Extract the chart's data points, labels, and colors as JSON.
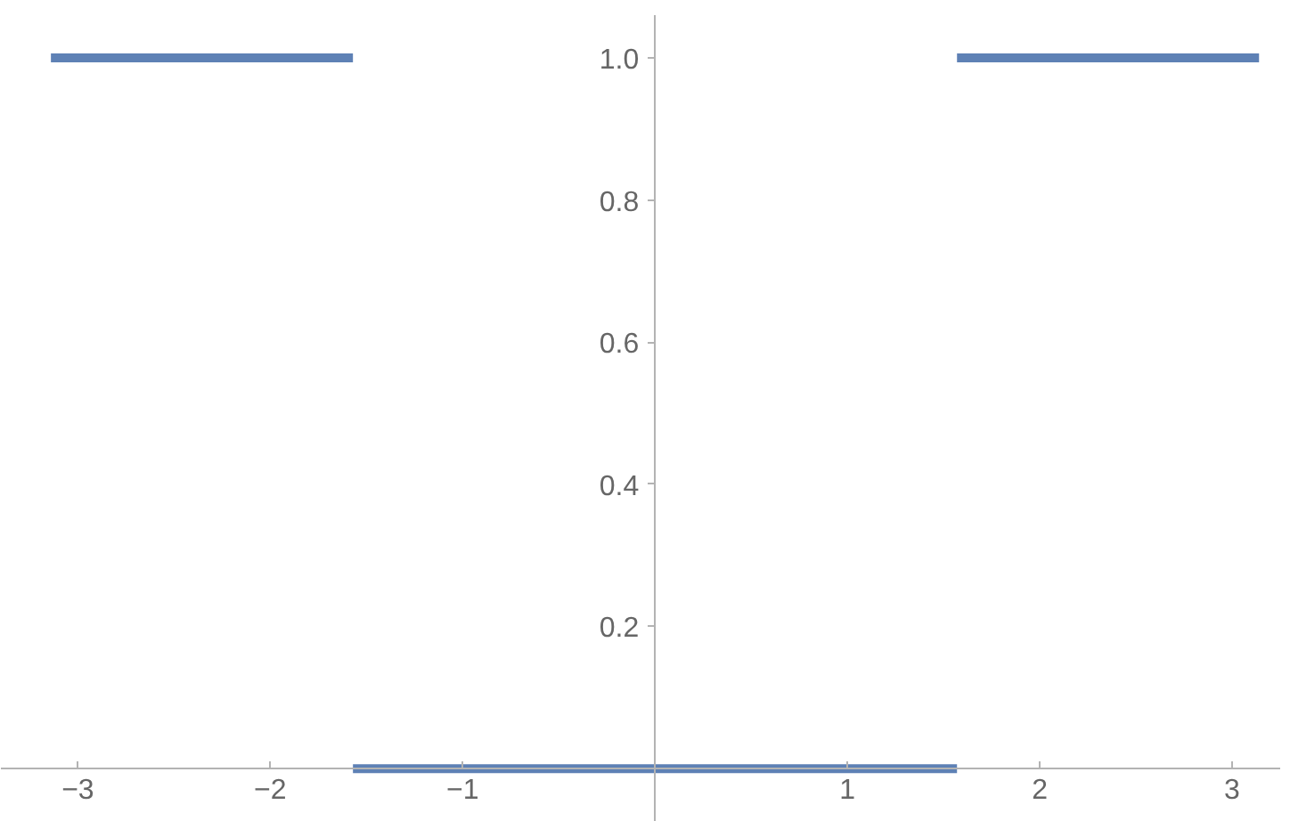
{
  "chart_data": {
    "type": "line",
    "series": [
      {
        "color": "#5e81b5",
        "x": [
          -3.14,
          -1.57
        ],
        "values": [
          1,
          1
        ]
      },
      {
        "color": "#5e81b5",
        "x": [
          -1.57,
          1.57
        ],
        "values": [
          0,
          0
        ]
      },
      {
        "color": "#5e81b5",
        "x": [
          1.57,
          3.14
        ],
        "values": [
          1,
          1
        ]
      }
    ],
    "xlim": [
      -3.4,
      3.25
    ],
    "ylim": [
      -0.075,
      1.06
    ],
    "xticks": [
      {
        "value": -3,
        "label": "−3"
      },
      {
        "value": -2,
        "label": "−2"
      },
      {
        "value": -1,
        "label": "−1"
      },
      1,
      2,
      3
    ],
    "yticks": [
      0.2,
      0.4,
      0.6,
      0.8,
      {
        "value": 1,
        "label": "1.0"
      }
    ],
    "grid": false,
    "marker": "none",
    "line_style": "solid"
  }
}
